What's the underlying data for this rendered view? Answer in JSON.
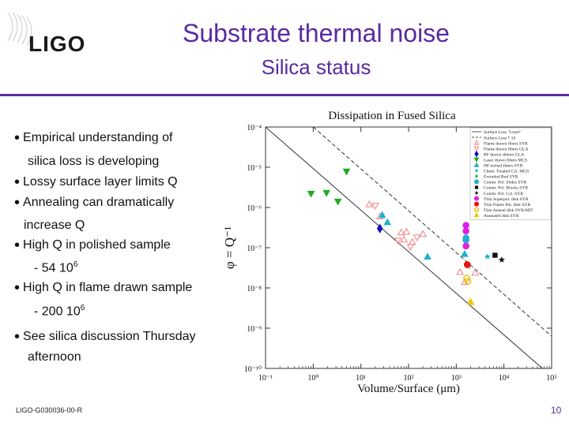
{
  "slide": {
    "logo": "LIGO",
    "title": "Substrate thermal noise",
    "subtitle": "Silica status",
    "bullets": [
      "Empirical understanding of",
      "silica loss is developing",
      "Lossy surface layer limits Q",
      "Annealing can dramatically",
      "increase Q",
      "High Q in polished sample",
      "- 54 10",
      "6",
      "High Q in flame drawn sample",
      "- 200 10",
      "6",
      "See silica discussion Thursday",
      "afternoon"
    ],
    "footer": "LIGO-G030036-00-R",
    "page_number": "10"
  },
  "chart_data": {
    "type": "scatter",
    "title": "Dissipation in Fused Silica",
    "xlabel": "Volume/Surface (μm)",
    "ylabel": "φ = Q⁻¹",
    "xscale": "log",
    "yscale": "log",
    "xlim": [
      0.1,
      100000
    ],
    "ylim": [
      1e-10,
      0.0001
    ],
    "x_ticks": [
      "10⁻¹",
      "10⁰",
      "10¹",
      "10²",
      "10³",
      "10⁴",
      "10⁵"
    ],
    "y_ticks": [
      "10⁻⁴",
      "10⁻⁵",
      "10⁻⁶",
      "10⁻⁷",
      "10⁻⁸",
      "10⁻⁹",
      "10⁻¹⁰"
    ],
    "legend_position": "top-right",
    "lines": [
      {
        "name": "Surface Loss \"Limit\"",
        "style": "solid",
        "points": [
          [
            0.1,
            0.0001
          ],
          [
            100000,
            6.3e-11
          ]
        ]
      },
      {
        "name": "Surface Loss * 10",
        "style": "dashed",
        "points": [
          [
            1,
            0.0001
          ],
          [
            100000,
            6.3e-10
          ]
        ]
      }
    ],
    "series": [
      {
        "name": "Flame drawn fibers SYR",
        "marker": "triangle-up-open",
        "color": "#f08080",
        "points": [
          [
            15,
            1.2e-06
          ],
          [
            25,
            6e-07
          ],
          [
            70,
            2.4e-07
          ],
          [
            80,
            1.6e-07
          ],
          [
            90,
            2.5e-07
          ],
          [
            120,
            1.4e-07
          ],
          [
            200,
            2.2e-07
          ],
          [
            1200,
            2.5e-08
          ],
          [
            1500,
            1.4e-08
          ],
          [
            2500,
            2.4e-08
          ]
        ]
      },
      {
        "name": "Flame drawn fibers GLA",
        "marker": "triangle-down-open",
        "color": "#f08080",
        "points": [
          [
            20,
            1.1e-06
          ],
          [
            60,
            1.5e-07
          ],
          [
            110,
            1.05e-07
          ],
          [
            150,
            1.8e-07
          ]
        ]
      },
      {
        "name": "RF drawn ribbon GLA",
        "marker": "diamond",
        "color": "#1010c0",
        "points": [
          [
            25,
            3e-07
          ]
        ]
      },
      {
        "name": "Laser drawn fibers MCS",
        "marker": "triangle-down",
        "color": "#22aa22",
        "points": [
          [
            0.9,
            2.2e-06
          ],
          [
            1.9,
            2.3e-06
          ],
          [
            3.3,
            1.4e-06
          ],
          [
            5,
            7.8e-06
          ]
        ]
      },
      {
        "name": "HF etched fibers SYR",
        "marker": "triangle-up",
        "color": "#20b0d0",
        "points": [
          [
            28,
            6.5e-07
          ],
          [
            36,
            4.3e-07
          ],
          [
            250,
            6e-08
          ],
          [
            1500,
            7e-08
          ]
        ]
      },
      {
        "name": "Chem. Treated Cyl. MGS",
        "marker": "star",
        "color": "#20b0d0",
        "points": [
          [
            4500,
            6e-08
          ]
        ]
      },
      {
        "name": "Extruded Rod SYR",
        "marker": "star",
        "color": "#22aa22",
        "points": [
          [
            1800,
            3.5e-08
          ]
        ]
      },
      {
        "name": "Comm. Pol. Slides SYR",
        "marker": "circle",
        "color": "#20b0d0",
        "points": [
          [
            1600,
            1.75e-07
          ],
          [
            1600,
            1.55e-07
          ]
        ]
      },
      {
        "name": "Comm. Pol. Blocks SYR",
        "marker": "square",
        "color": "#111111",
        "points": [
          [
            6500,
            6.5e-08
          ]
        ]
      },
      {
        "name": "Comm. Pol. Cyl. SYR",
        "marker": "star",
        "color": "#111111",
        "points": [
          [
            9000,
            5e-08
          ]
        ]
      },
      {
        "name": "Thin Superpol. disk SYR",
        "marker": "circle",
        "color": "#e020e0",
        "points": [
          [
            1600,
            3.6e-07
          ],
          [
            1600,
            2.6e-07
          ],
          [
            1600,
            1.1e-07
          ]
        ]
      },
      {
        "name": "Thin Flame Pol. disk SYR",
        "marker": "circle",
        "color": "#ee1111",
        "points": [
          [
            1700,
            3.8e-08
          ]
        ]
      },
      {
        "name": "Thin Anneal disk SYR/MIT",
        "marker": "circle-open",
        "color": "#e8b800",
        "points": [
          [
            1650,
            1.75e-08
          ],
          [
            1750,
            1.45e-08
          ]
        ]
      },
      {
        "name": "Annealed disk SYR",
        "marker": "triangle-up",
        "color": "#e8c800",
        "points": [
          [
            2000,
            4.5e-09
          ]
        ]
      }
    ]
  }
}
